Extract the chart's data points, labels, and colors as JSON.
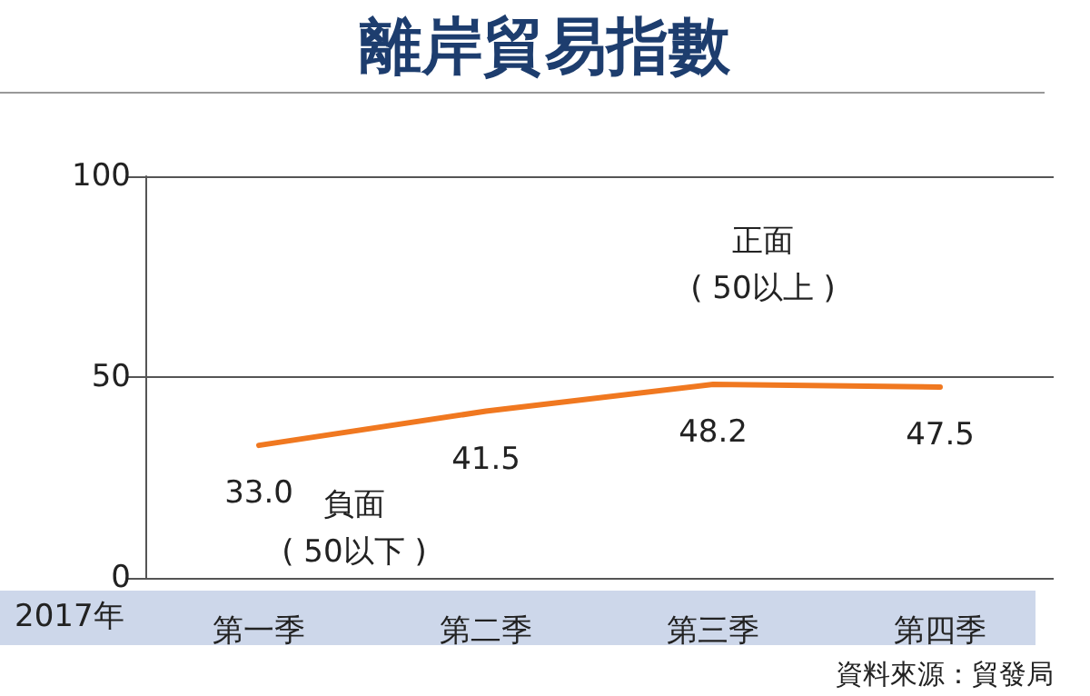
{
  "chart_data": {
    "type": "line",
    "title": "離岸貿易指數",
    "xlabel": "2017年",
    "categories": [
      "第一季",
      "第二季",
      "第三季",
      "第四季"
    ],
    "series": [
      {
        "color": "#f07820",
        "values": [
          33.0,
          41.5,
          48.2,
          47.5
        ],
        "value_labels": [
          "33.0",
          "41.5",
          "48.2",
          "47.5"
        ]
      }
    ],
    "ylim": [
      0,
      100
    ],
    "yticks": [
      0,
      50,
      100
    ],
    "grid": "y",
    "marker": "none",
    "line_style": "solid",
    "annotations": [
      "正面\n( 50以上 )",
      "負面\n( 50以下 )",
      "資料來源：貿發局"
    ]
  }
}
